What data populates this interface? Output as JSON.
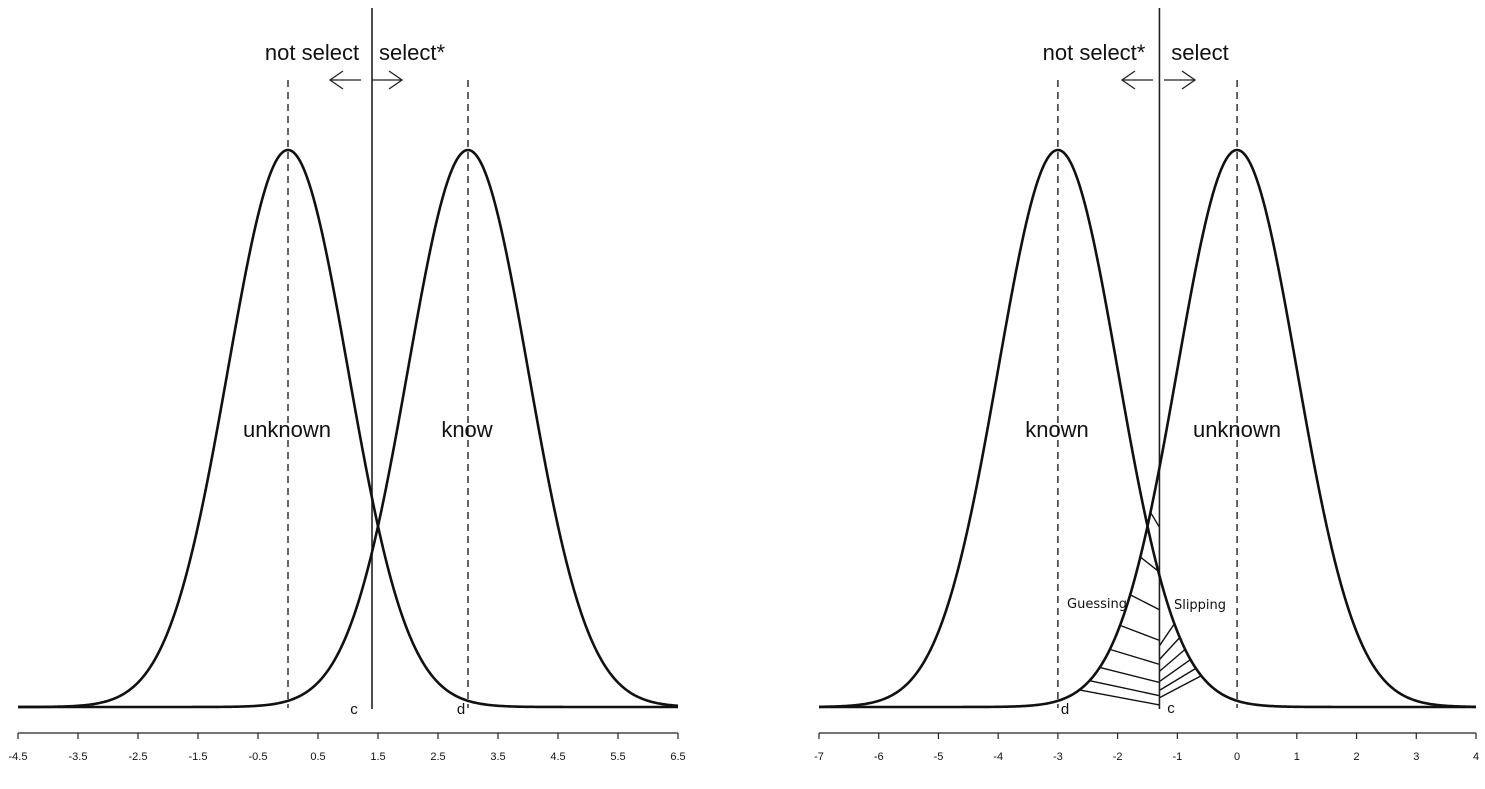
{
  "chart_data": [
    {
      "type": "line",
      "xlim": [
        -4.5,
        6.5
      ],
      "x_ticks": [
        -4.5,
        -3.5,
        -2.5,
        -1.5,
        -0.5,
        0.5,
        1.5,
        2.5,
        3.5,
        4.5,
        5.5,
        6.5
      ],
      "x_tick_labels": [
        "-4.5",
        "-3.5",
        "-2.5",
        "-1.5",
        "-0.5",
        "0.5",
        "1.5",
        "2.5",
        "3.5",
        "4.5",
        "5.5",
        "6.5"
      ],
      "series": [
        {
          "name": "unknown",
          "mean": 0,
          "sd": 1
        },
        {
          "name": "know",
          "mean": 3,
          "sd": 1
        }
      ],
      "criterion": 1.4,
      "criterion_label": "c",
      "d_label": "d",
      "left_region_label": "not select",
      "right_region_label": "select*",
      "hatched": false
    },
    {
      "type": "line",
      "xlim": [
        -7,
        4
      ],
      "x_ticks": [
        -7,
        -6,
        -5,
        -4,
        -3,
        -2,
        -1,
        0,
        1,
        2,
        3,
        4
      ],
      "x_tick_labels": [
        "-7",
        "-6",
        "-5",
        "-4",
        "-3",
        "-2",
        "-1",
        "0",
        "1",
        "2",
        "3",
        "4"
      ],
      "series": [
        {
          "name": "known",
          "mean": -3,
          "sd": 1
        },
        {
          "name": "unknown",
          "mean": 0,
          "sd": 1
        }
      ],
      "criterion": -1.3,
      "criterion_label": "c",
      "d_label": "d",
      "left_region_label": "not select*",
      "right_region_label": "select",
      "hatched": true,
      "annotations": [
        "Guessing",
        "Slipping"
      ]
    }
  ]
}
